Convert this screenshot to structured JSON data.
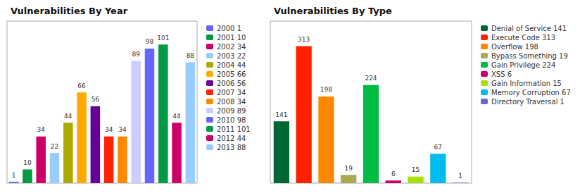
{
  "chart_data": [
    {
      "type": "bar",
      "title": "Vulnerabilities By Year",
      "categories": [
        "2000 1",
        "2001 10",
        "2002 34",
        "2003 22",
        "2004 44",
        "2005 66",
        "2006 56",
        "2007 34",
        "2008 34",
        "2009 89",
        "2010 98",
        "2011 101",
        "2012 44",
        "2013 88"
      ],
      "values": [
        1,
        10,
        34,
        22,
        44,
        66,
        56,
        34,
        34,
        89,
        98,
        101,
        44,
        88
      ],
      "colors": [
        "#6666ff",
        "#009944",
        "#cc0066",
        "#99ccff",
        "#aaaa00",
        "#ffaa00",
        "#660099",
        "#ff2200",
        "#ff8800",
        "#ccccff",
        "#6666ff",
        "#009944",
        "#cc0066",
        "#99ccff"
      ],
      "ylim": [
        0,
        118
      ],
      "grid": false,
      "tick_labels": false,
      "data_labels": true,
      "legend": "upper right"
    },
    {
      "type": "bar",
      "title": "Vulnerabilities By Type",
      "categories": [
        "Denial of Service 141",
        "Execute Code 313",
        "Overflow 198",
        "Bypass Something 19",
        "Gain Privilege 224",
        "XSS 6",
        "Gain Information 15",
        "Memory Corruption 67",
        "Directory Traversal 1"
      ],
      "values": [
        141,
        313,
        198,
        19,
        224,
        6,
        15,
        67,
        1
      ],
      "colors": [
        "#006633",
        "#ff2200",
        "#ff8800",
        "#aaaa55",
        "#00bb44",
        "#cc0066",
        "#aadd00",
        "#00bbee",
        "#6666cc"
      ],
      "ylim": [
        0,
        370
      ],
      "grid": false,
      "tick_labels": false,
      "data_labels": true,
      "legend": "upper right"
    }
  ]
}
